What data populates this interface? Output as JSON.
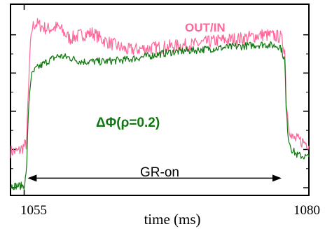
{
  "chart_data": {
    "type": "line",
    "title": "",
    "xlabel": "time (ms)",
    "ylabel": "",
    "xlim": [
      1053.8,
      1080
    ],
    "ylim": [
      0,
      1
    ],
    "x_tick_labels": [
      "1055",
      "1080"
    ],
    "grid": false,
    "legend": "none",
    "series": [
      {
        "name": "OUT/IN",
        "color": "#ff6699",
        "x": [
          1053.8,
          1054.5,
          1055.2,
          1055.3,
          1055.5,
          1055.7,
          1056,
          1057,
          1058,
          1059,
          1060,
          1061,
          1062,
          1064,
          1066,
          1068,
          1070,
          1072,
          1074,
          1076,
          1077.5,
          1077.9,
          1078,
          1078.2,
          1078.5,
          1079,
          1080
        ],
        "values": [
          0.23,
          0.23,
          0.27,
          0.42,
          0.74,
          0.88,
          0.9,
          0.87,
          0.88,
          0.82,
          0.84,
          0.85,
          0.81,
          0.76,
          0.77,
          0.78,
          0.79,
          0.81,
          0.82,
          0.84,
          0.83,
          0.76,
          0.5,
          0.38,
          0.3,
          0.29,
          0.27
        ]
      },
      {
        "name": "ΔΦ(ρ=0.2)",
        "color": "#117711",
        "x": [
          1053.8,
          1054.5,
          1055.0,
          1055.2,
          1055.4,
          1055.6,
          1056,
          1057,
          1058,
          1059,
          1060,
          1062,
          1064,
          1066,
          1068,
          1070,
          1072,
          1074,
          1076,
          1077.5,
          1077.9,
          1078,
          1078.2,
          1078.5,
          1079,
          1080
        ],
        "values": [
          0.05,
          0.05,
          0.05,
          0.12,
          0.48,
          0.62,
          0.66,
          0.7,
          0.73,
          0.72,
          0.7,
          0.7,
          0.71,
          0.73,
          0.75,
          0.76,
          0.77,
          0.78,
          0.79,
          0.78,
          0.7,
          0.45,
          0.3,
          0.24,
          0.21,
          0.2
        ]
      }
    ],
    "annotations": [
      {
        "text": "GR-on",
        "type": "double-arrow",
        "x_start": 1055.3,
        "x_end": 1077.6,
        "y": 0.09
      }
    ]
  }
}
